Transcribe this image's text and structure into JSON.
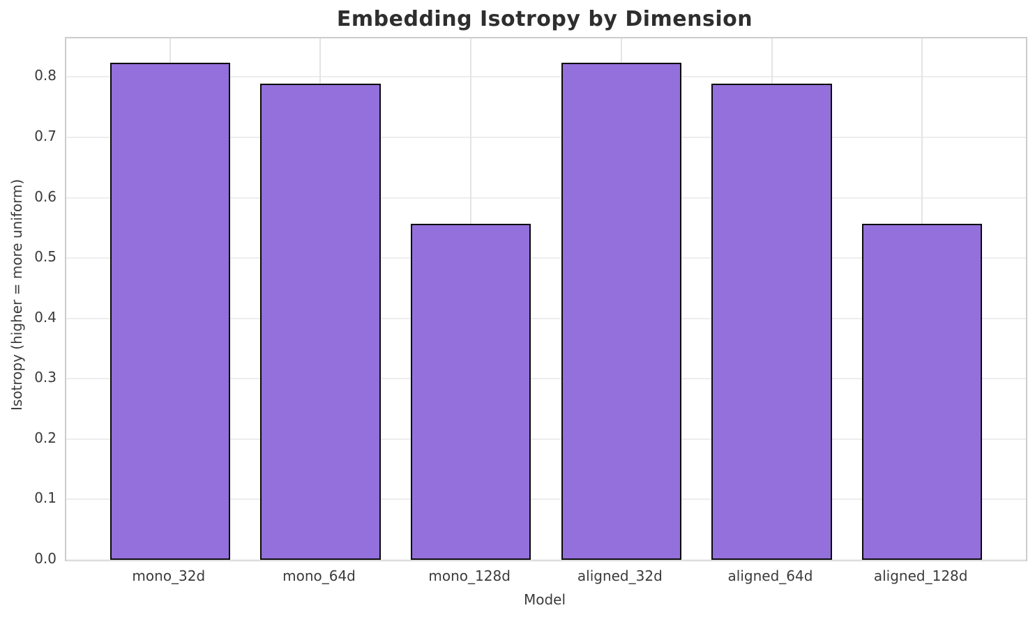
{
  "chart_data": {
    "type": "bar",
    "title": "Embedding Isotropy by Dimension",
    "xlabel": "Model",
    "ylabel": "Isotropy (higher = more uniform)",
    "categories": [
      "mono_32d",
      "mono_64d",
      "mono_128d",
      "aligned_32d",
      "aligned_64d",
      "aligned_128d"
    ],
    "values": [
      0.823,
      0.789,
      0.557,
      0.823,
      0.789,
      0.557
    ],
    "yticks": [
      0.0,
      0.1,
      0.2,
      0.3,
      0.4,
      0.5,
      0.6,
      0.7,
      0.8
    ],
    "ylim": [
      0,
      0.864
    ],
    "xlim": [
      -0.69,
      5.69
    ],
    "bar_width": 0.8,
    "grid": true,
    "legend": false,
    "colors": {
      "bar_fill": "#9370DB",
      "bar_edge": "#0a0a0a",
      "grid_line": "#ededed",
      "spine": "#cccccc",
      "title_text": "#2e2e2e",
      "tick_text": "#3b3b3b",
      "background": "#ffffff"
    }
  }
}
